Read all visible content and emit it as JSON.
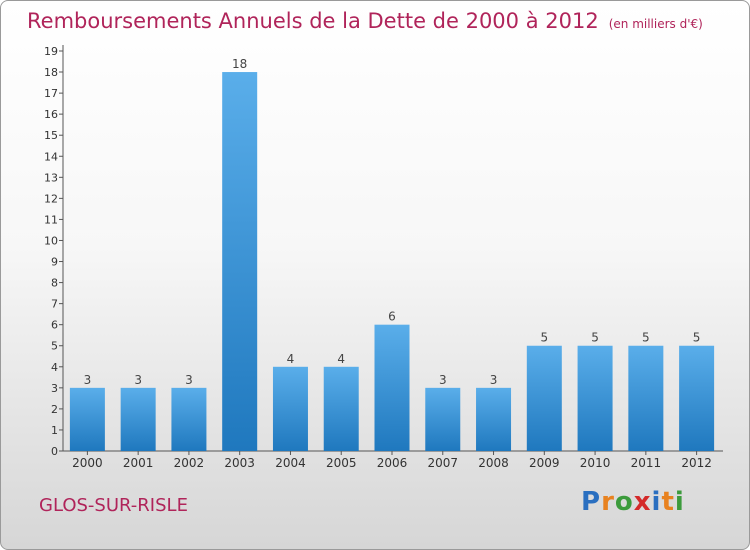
{
  "header": {
    "title": "Remboursements Annuels de la Dette de 2000 à 2012",
    "subtitle": "(en milliers d'€)"
  },
  "footer": {
    "commune": "GLOS-SUR-RISLE",
    "logo_text": "Proxiti",
    "logo_letters": [
      {
        "ch": "P",
        "color": "#2a6fc0"
      },
      {
        "ch": "r",
        "color": "#e8821f"
      },
      {
        "ch": "o",
        "color": "#3c9b3c"
      },
      {
        "ch": "x",
        "color": "#d42a2a"
      },
      {
        "ch": "i",
        "color": "#2a6fc0"
      },
      {
        "ch": "t",
        "color": "#e8821f"
      },
      {
        "ch": "i",
        "color": "#3c9b3c"
      }
    ]
  },
  "colors": {
    "bar_top": "#5aaeea",
    "bar_bottom": "#1f78be",
    "title": "#b0245a"
  },
  "chart_data": {
    "type": "bar",
    "categories": [
      "2000",
      "2001",
      "2002",
      "2003",
      "2004",
      "2005",
      "2006",
      "2007",
      "2008",
      "2009",
      "2010",
      "2011",
      "2012"
    ],
    "values": [
      3,
      3,
      3,
      18,
      4,
      4,
      6,
      3,
      3,
      5,
      5,
      5,
      5
    ],
    "title": "Remboursements Annuels de la Dette de 2000 à 2012",
    "ylabel": "",
    "xlabel": "",
    "ylim": [
      0,
      19
    ],
    "yticks": [
      0,
      1,
      2,
      3,
      4,
      5,
      6,
      7,
      8,
      9,
      10,
      11,
      12,
      13,
      14,
      15,
      16,
      17,
      18,
      19
    ],
    "grid": false
  }
}
